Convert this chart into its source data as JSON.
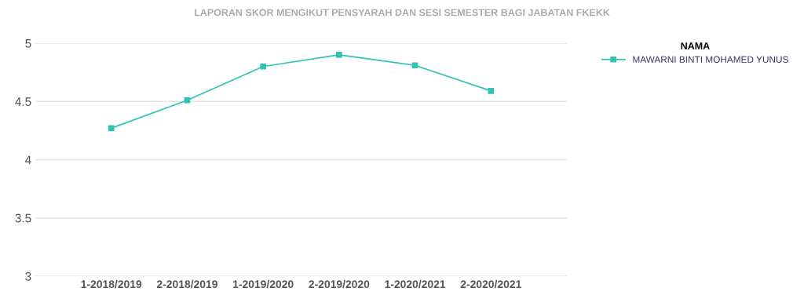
{
  "chart_data": {
    "type": "line",
    "title": "LAPORAN SKOR MENGIKUT PENSYARAH DAN SESI SEMESTER BAGI JABATAN FKEKK",
    "categories": [
      "1-2018/2019",
      "2-2018/2019",
      "1-2019/2020",
      "2-2019/2020",
      "1-2020/2021",
      "2-2020/2021"
    ],
    "series": [
      {
        "name": "MAWARNI BINTI MOHAMED YUNUS",
        "color": "#2ec4b6",
        "values": [
          4.27,
          4.51,
          4.8,
          4.9,
          4.81,
          4.59
        ]
      }
    ],
    "legend_title": "NAMA",
    "legend": "right",
    "ylim": [
      3,
      5
    ],
    "yticks": [
      3,
      3.5,
      4,
      4.5,
      5
    ],
    "grid": "y",
    "marker": "square",
    "line_style": "solid"
  }
}
